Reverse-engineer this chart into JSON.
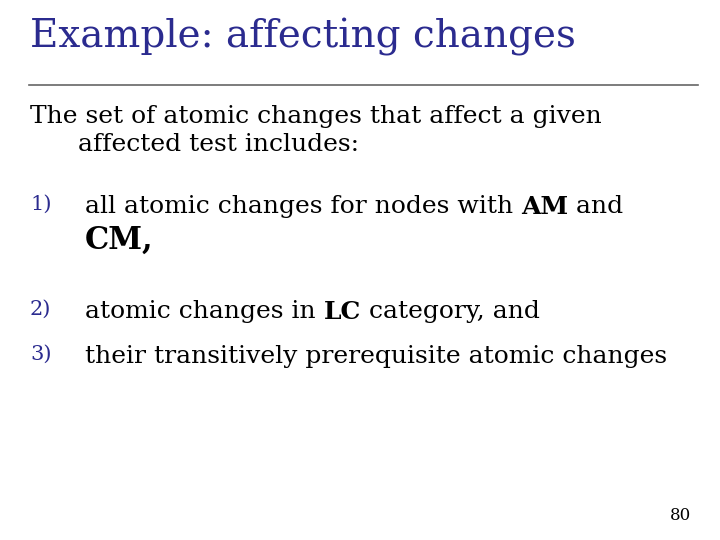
{
  "title": "Example: affecting changes",
  "title_color": "#2b2b8f",
  "title_fontsize": 28,
  "body_color": "#000000",
  "number_color": "#2b2b8f",
  "bg_color": "#ffffff",
  "page_number": "80",
  "intro_line1": "The set of atomic changes that affect a given",
  "intro_line2": "      affected test includes:",
  "body_fontsize": 18,
  "num_fontsize": 15,
  "cm_fontsize": 22
}
